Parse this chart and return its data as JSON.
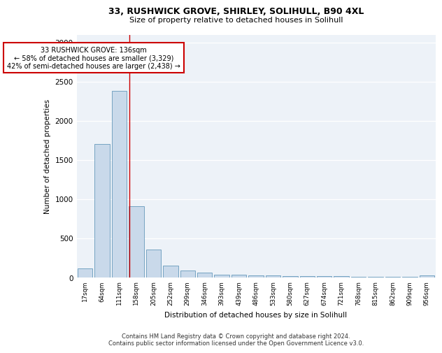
{
  "title1": "33, RUSHWICK GROVE, SHIRLEY, SOLIHULL, B90 4XL",
  "title2": "Size of property relative to detached houses in Solihull",
  "xlabel": "Distribution of detached houses by size in Solihull",
  "ylabel": "Number of detached properties",
  "bar_color": "#c9d9ea",
  "bar_edge_color": "#6699bb",
  "categories": [
    "17sqm",
    "64sqm",
    "111sqm",
    "158sqm",
    "205sqm",
    "252sqm",
    "299sqm",
    "346sqm",
    "393sqm",
    "439sqm",
    "486sqm",
    "533sqm",
    "580sqm",
    "627sqm",
    "674sqm",
    "721sqm",
    "768sqm",
    "815sqm",
    "862sqm",
    "909sqm",
    "956sqm"
  ],
  "values": [
    120,
    1700,
    2380,
    910,
    360,
    150,
    90,
    65,
    40,
    35,
    30,
    25,
    20,
    20,
    18,
    15,
    12,
    10,
    8,
    6,
    30
  ],
  "redline_x": 2.58,
  "annotation_title": "33 RUSHWICK GROVE: 136sqm",
  "annotation_line1": "← 58% of detached houses are smaller (3,329)",
  "annotation_line2": "42% of semi-detached houses are larger (2,438) →",
  "annotation_box_color": "#ffffff",
  "annotation_box_edge": "#cc0000",
  "redline_color": "#cc0000",
  "bg_color": "#edf2f8",
  "footer1": "Contains HM Land Registry data © Crown copyright and database right 2024.",
  "footer2": "Contains public sector information licensed under the Open Government Licence v3.0.",
  "ylim": [
    0,
    3100
  ],
  "yticks": [
    0,
    500,
    1000,
    1500,
    2000,
    2500,
    3000
  ]
}
